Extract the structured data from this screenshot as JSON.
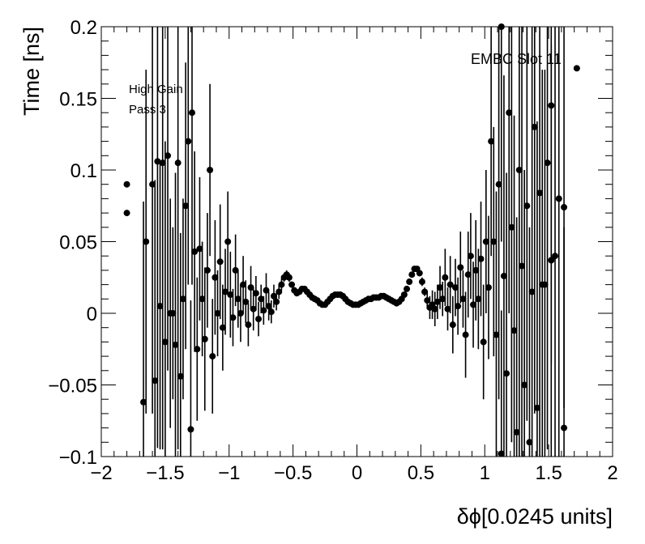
{
  "chart_data": {
    "type": "scatter",
    "title": "",
    "xlabel": "δϕ[0.0245 units]",
    "ylabel": "Time [ns]",
    "xlim": [
      -2,
      2
    ],
    "ylim": [
      -0.1,
      0.2
    ],
    "grid": false,
    "annotations": [
      "EMBC Slot 11",
      "High Gain",
      "Pass 3"
    ],
    "x_ticks": [
      "−2",
      "−1.5",
      "−1",
      "−0.5",
      "0",
      "0.5",
      "1",
      "1.5",
      "2"
    ],
    "y_ticks": [
      "−0.1",
      "−0.05",
      "0",
      "0.05",
      "0.1",
      "0.15",
      "0.2"
    ],
    "marker_color": "#000000",
    "series": [
      {
        "points": [
          {
            "x": -1.8,
            "y": 0.09,
            "err": 0.0
          },
          {
            "x": -1.8,
            "y": 0.07,
            "err": 0.0
          },
          {
            "x": -1.67,
            "y": -0.062,
            "err": 0.14
          },
          {
            "x": -1.65,
            "y": 0.05,
            "err": 0.12
          },
          {
            "x": -1.6,
            "y": 0.09,
            "err": 0.16
          },
          {
            "x": -1.58,
            "y": -0.047,
            "err": 0.14
          },
          {
            "x": -1.56,
            "y": 0.106,
            "err": 0.2
          },
          {
            "x": -1.54,
            "y": 0.005,
            "err": 0.1
          },
          {
            "x": -1.52,
            "y": 0.105,
            "err": 0.2
          },
          {
            "x": -1.5,
            "y": -0.02,
            "err": 0.14
          },
          {
            "x": -1.48,
            "y": 0.11,
            "err": 0.15
          },
          {
            "x": -1.46,
            "y": 0.0,
            "err": 0.08
          },
          {
            "x": -1.44,
            "y": 0.0,
            "err": 0.06
          },
          {
            "x": -1.42,
            "y": -0.022,
            "err": 0.12
          },
          {
            "x": -1.4,
            "y": 0.105,
            "err": 0.2
          },
          {
            "x": -1.38,
            "y": -0.044,
            "err": 0.1
          },
          {
            "x": -1.36,
            "y": 0.01,
            "err": 0.07
          },
          {
            "x": -1.34,
            "y": 0.075,
            "err": 0.1
          },
          {
            "x": -1.32,
            "y": 0.12,
            "err": 0.1
          },
          {
            "x": -1.3,
            "y": -0.081,
            "err": 0.09
          },
          {
            "x": -1.29,
            "y": 0.14,
            "err": 0.12
          },
          {
            "x": -1.27,
            "y": 0.043,
            "err": 0.07
          },
          {
            "x": -1.25,
            "y": -0.025,
            "err": 0.05
          },
          {
            "x": -1.23,
            "y": 0.045,
            "err": 0.05
          },
          {
            "x": -1.21,
            "y": 0.01,
            "err": 0.04
          },
          {
            "x": -1.19,
            "y": -0.018,
            "err": 0.05
          },
          {
            "x": -1.17,
            "y": 0.03,
            "err": 0.04
          },
          {
            "x": -1.15,
            "y": 0.1,
            "err": 0.06
          },
          {
            "x": -1.13,
            "y": -0.03,
            "err": 0.04
          },
          {
            "x": -1.11,
            "y": 0.025,
            "err": 0.04
          },
          {
            "x": -1.09,
            "y": 0.0,
            "err": 0.03
          },
          {
            "x": -1.07,
            "y": 0.036,
            "err": 0.04
          },
          {
            "x": -1.05,
            "y": -0.01,
            "err": 0.03
          },
          {
            "x": -1.03,
            "y": 0.015,
            "err": 0.03
          },
          {
            "x": -1.01,
            "y": 0.05,
            "err": 0.035
          },
          {
            "x": -0.99,
            "y": 0.013,
            "err": 0.03
          },
          {
            "x": -0.97,
            "y": -0.003,
            "err": 0.02
          },
          {
            "x": -0.95,
            "y": 0.03,
            "err": 0.025
          },
          {
            "x": -0.93,
            "y": 0.01,
            "err": 0.02
          },
          {
            "x": -0.91,
            "y": 0.0,
            "err": 0.02
          },
          {
            "x": -0.89,
            "y": 0.02,
            "err": 0.02
          },
          {
            "x": -0.87,
            "y": 0.008,
            "err": 0.015
          },
          {
            "x": -0.85,
            "y": -0.008,
            "err": 0.015
          },
          {
            "x": -0.83,
            "y": 0.018,
            "err": 0.015
          },
          {
            "x": -0.81,
            "y": 0.003,
            "err": 0.015
          },
          {
            "x": -0.79,
            "y": 0.014,
            "err": 0.012
          },
          {
            "x": -0.77,
            "y": -0.004,
            "err": 0.012
          },
          {
            "x": -0.75,
            "y": 0.01,
            "err": 0.01
          },
          {
            "x": -0.73,
            "y": 0.002,
            "err": 0.01
          },
          {
            "x": -0.71,
            "y": 0.016,
            "err": 0.012
          },
          {
            "x": -0.69,
            "y": 0.005,
            "err": 0.01
          },
          {
            "x": -0.67,
            "y": 0.001,
            "err": 0.008
          },
          {
            "x": -0.65,
            "y": 0.012,
            "err": 0.008
          },
          {
            "x": -0.63,
            "y": 0.008,
            "err": 0.006
          },
          {
            "x": -0.61,
            "y": 0.015,
            "err": 0.005
          },
          {
            "x": -0.59,
            "y": 0.02,
            "err": 0.004
          },
          {
            "x": -0.57,
            "y": 0.025,
            "err": 0.003
          },
          {
            "x": -0.55,
            "y": 0.027,
            "err": 0.003
          },
          {
            "x": -0.53,
            "y": 0.025,
            "err": 0.003
          },
          {
            "x": -0.51,
            "y": 0.02,
            "err": 0.002
          },
          {
            "x": -0.49,
            "y": 0.016,
            "err": 0.002
          },
          {
            "x": -0.47,
            "y": 0.014,
            "err": 0.002
          },
          {
            "x": -0.45,
            "y": 0.015,
            "err": 0.002
          },
          {
            "x": -0.43,
            "y": 0.017,
            "err": 0.002
          },
          {
            "x": -0.41,
            "y": 0.017,
            "err": 0.002
          },
          {
            "x": -0.39,
            "y": 0.015,
            "err": 0.002
          },
          {
            "x": -0.37,
            "y": 0.013,
            "err": 0.002
          },
          {
            "x": -0.35,
            "y": 0.011,
            "err": 0.002
          },
          {
            "x": -0.33,
            "y": 0.01,
            "err": 0.002
          },
          {
            "x": -0.31,
            "y": 0.009,
            "err": 0.002
          },
          {
            "x": -0.29,
            "y": 0.007,
            "err": 0.002
          },
          {
            "x": -0.27,
            "y": 0.006,
            "err": 0.002
          },
          {
            "x": -0.25,
            "y": 0.006,
            "err": 0.002
          },
          {
            "x": -0.23,
            "y": 0.008,
            "err": 0.002
          },
          {
            "x": -0.21,
            "y": 0.01,
            "err": 0.002
          },
          {
            "x": -0.19,
            "y": 0.012,
            "err": 0.002
          },
          {
            "x": -0.17,
            "y": 0.013,
            "err": 0.002
          },
          {
            "x": -0.15,
            "y": 0.013,
            "err": 0.002
          },
          {
            "x": -0.13,
            "y": 0.013,
            "err": 0.002
          },
          {
            "x": -0.11,
            "y": 0.012,
            "err": 0.002
          },
          {
            "x": -0.09,
            "y": 0.01,
            "err": 0.002
          },
          {
            "x": -0.07,
            "y": 0.008,
            "err": 0.002
          },
          {
            "x": -0.05,
            "y": 0.007,
            "err": 0.002
          },
          {
            "x": -0.03,
            "y": 0.006,
            "err": 0.002
          },
          {
            "x": -0.01,
            "y": 0.006,
            "err": 0.002
          },
          {
            "x": 0.01,
            "y": 0.006,
            "err": 0.002
          },
          {
            "x": 0.03,
            "y": 0.007,
            "err": 0.002
          },
          {
            "x": 0.05,
            "y": 0.008,
            "err": 0.002
          },
          {
            "x": 0.07,
            "y": 0.009,
            "err": 0.002
          },
          {
            "x": 0.09,
            "y": 0.01,
            "err": 0.002
          },
          {
            "x": 0.11,
            "y": 0.01,
            "err": 0.002
          },
          {
            "x": 0.13,
            "y": 0.011,
            "err": 0.002
          },
          {
            "x": 0.15,
            "y": 0.011,
            "err": 0.002
          },
          {
            "x": 0.17,
            "y": 0.011,
            "err": 0.002
          },
          {
            "x": 0.19,
            "y": 0.012,
            "err": 0.002
          },
          {
            "x": 0.21,
            "y": 0.012,
            "err": 0.002
          },
          {
            "x": 0.23,
            "y": 0.011,
            "err": 0.002
          },
          {
            "x": 0.25,
            "y": 0.01,
            "err": 0.002
          },
          {
            "x": 0.27,
            "y": 0.009,
            "err": 0.002
          },
          {
            "x": 0.29,
            "y": 0.008,
            "err": 0.002
          },
          {
            "x": 0.31,
            "y": 0.007,
            "err": 0.002
          },
          {
            "x": 0.33,
            "y": 0.008,
            "err": 0.002
          },
          {
            "x": 0.35,
            "y": 0.01,
            "err": 0.002
          },
          {
            "x": 0.37,
            "y": 0.013,
            "err": 0.002
          },
          {
            "x": 0.39,
            "y": 0.017,
            "err": 0.002
          },
          {
            "x": 0.41,
            "y": 0.022,
            "err": 0.002
          },
          {
            "x": 0.43,
            "y": 0.027,
            "err": 0.002
          },
          {
            "x": 0.45,
            "y": 0.031,
            "err": 0.002
          },
          {
            "x": 0.47,
            "y": 0.031,
            "err": 0.002
          },
          {
            "x": 0.49,
            "y": 0.028,
            "err": 0.002
          },
          {
            "x": 0.51,
            "y": 0.022,
            "err": 0.003
          },
          {
            "x": 0.53,
            "y": 0.015,
            "err": 0.003
          },
          {
            "x": 0.55,
            "y": 0.009,
            "err": 0.006
          },
          {
            "x": 0.57,
            "y": 0.004,
            "err": 0.008
          },
          {
            "x": 0.59,
            "y": 0.006,
            "err": 0.01
          },
          {
            "x": 0.61,
            "y": 0.003,
            "err": 0.012
          },
          {
            "x": 0.63,
            "y": 0.008,
            "err": 0.012
          },
          {
            "x": 0.65,
            "y": 0.018,
            "err": 0.015
          },
          {
            "x": 0.67,
            "y": 0.01,
            "err": 0.012
          },
          {
            "x": 0.69,
            "y": 0.025,
            "err": 0.02
          },
          {
            "x": 0.71,
            "y": 0.003,
            "err": 0.015
          },
          {
            "x": 0.73,
            "y": 0.02,
            "err": 0.02
          },
          {
            "x": 0.75,
            "y": -0.008,
            "err": 0.02
          },
          {
            "x": 0.77,
            "y": 0.018,
            "err": 0.02
          },
          {
            "x": 0.79,
            "y": 0.005,
            "err": 0.02
          },
          {
            "x": 0.81,
            "y": 0.032,
            "err": 0.025
          },
          {
            "x": 0.83,
            "y": 0.01,
            "err": 0.02
          },
          {
            "x": 0.85,
            "y": -0.015,
            "err": 0.03
          },
          {
            "x": 0.87,
            "y": 0.027,
            "err": 0.03
          },
          {
            "x": 0.89,
            "y": 0.04,
            "err": 0.03
          },
          {
            "x": 0.91,
            "y": 0.006,
            "err": 0.03
          },
          {
            "x": 0.93,
            "y": 0.03,
            "err": 0.035
          },
          {
            "x": 0.95,
            "y": 0.01,
            "err": 0.035
          },
          {
            "x": 0.97,
            "y": 0.038,
            "err": 0.04
          },
          {
            "x": 0.99,
            "y": -0.02,
            "err": 0.04
          },
          {
            "x": 1.01,
            "y": 0.05,
            "err": 0.05
          },
          {
            "x": 1.03,
            "y": 0.018,
            "err": 0.05
          },
          {
            "x": 1.05,
            "y": 0.12,
            "err": 0.08
          },
          {
            "x": 1.07,
            "y": 0.05,
            "err": 0.08
          },
          {
            "x": 1.09,
            "y": -0.015,
            "err": 0.1
          },
          {
            "x": 1.11,
            "y": 0.09,
            "err": 0.15
          },
          {
            "x": 1.13,
            "y": -0.098,
            "err": 0.1
          },
          {
            "x": 1.13,
            "y": 0.2,
            "err": 0.15
          },
          {
            "x": 1.15,
            "y": 0.026,
            "err": 0.14
          },
          {
            "x": 1.17,
            "y": -0.042,
            "err": 0.14
          },
          {
            "x": 1.19,
            "y": 0.14,
            "err": 0.14
          },
          {
            "x": 1.21,
            "y": 0.06,
            "err": 0.15
          },
          {
            "x": 1.23,
            "y": -0.012,
            "err": 0.15
          },
          {
            "x": 1.25,
            "y": -0.083,
            "err": 0.15
          },
          {
            "x": 1.27,
            "y": 0.1,
            "err": 0.2
          },
          {
            "x": 1.29,
            "y": 0.033,
            "err": 0.18
          },
          {
            "x": 1.31,
            "y": -0.05,
            "err": 0.15
          },
          {
            "x": 1.33,
            "y": 0.075,
            "err": 0.15
          },
          {
            "x": 1.35,
            "y": -0.09,
            "err": 0.15
          },
          {
            "x": 1.37,
            "y": 0.015,
            "err": 0.2
          },
          {
            "x": 1.39,
            "y": 0.13,
            "err": 0.2
          },
          {
            "x": 1.41,
            "y": -0.066,
            "err": 0.2
          },
          {
            "x": 1.43,
            "y": 0.084,
            "err": 0.2
          },
          {
            "x": 1.45,
            "y": 0.02,
            "err": 0.15
          },
          {
            "x": 1.47,
            "y": 0.02,
            "err": 0.15
          },
          {
            "x": 1.49,
            "y": 0.105,
            "err": 0.2
          },
          {
            "x": 1.52,
            "y": 0.145,
            "err": 0.18
          },
          {
            "x": 1.52,
            "y": 0.037,
            "err": 0.15
          },
          {
            "x": 1.55,
            "y": 0.04,
            "err": 0.2
          },
          {
            "x": 1.58,
            "y": 0.08,
            "err": 0.18
          },
          {
            "x": 1.62,
            "y": 0.074,
            "err": 0.14
          },
          {
            "x": 1.62,
            "y": -0.08,
            "err": 0.14
          },
          {
            "x": 1.72,
            "y": 0.171,
            "err": 0.0
          }
        ]
      }
    ]
  }
}
